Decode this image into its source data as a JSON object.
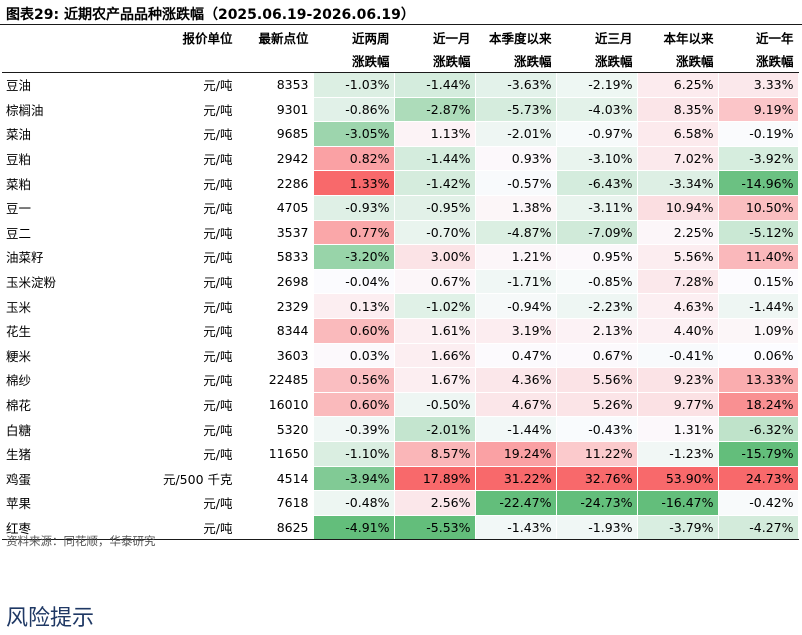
{
  "title": "图表29:  近期农产品品种涨跌幅（2025.06.19-2026.06.19）",
  "header_row1": [
    "",
    "报价单位",
    "最新点位",
    "近两周",
    "近一月",
    "本季度以来",
    "近三月",
    "本年以来",
    "近一年"
  ],
  "header_row2": [
    "",
    "",
    "",
    "涨跌幅",
    "涨跌幅",
    "涨跌幅",
    "涨跌幅",
    "涨跌幅",
    "涨跌幅"
  ],
  "rows": [
    {
      "name": "豆油",
      "unit": "元/吨",
      "price": "8353",
      "vals": [
        "-1.03%",
        "-1.44%",
        "-3.63%",
        "-2.19%",
        "6.25%",
        "3.33%"
      ]
    },
    {
      "name": "棕榈油",
      "unit": "元/吨",
      "price": "9301",
      "vals": [
        "-0.86%",
        "-2.87%",
        "-5.73%",
        "-4.03%",
        "8.35%",
        "9.19%"
      ]
    },
    {
      "name": "菜油",
      "unit": "元/吨",
      "price": "9685",
      "vals": [
        "-3.05%",
        "1.13%",
        "-2.01%",
        "-0.97%",
        "6.58%",
        "-0.19%"
      ]
    },
    {
      "name": "豆粕",
      "unit": "元/吨",
      "price": "2942",
      "vals": [
        "0.82%",
        "-1.44%",
        "0.93%",
        "-3.10%",
        "7.02%",
        "-3.92%"
      ]
    },
    {
      "name": "菜粕",
      "unit": "元/吨",
      "price": "2286",
      "vals": [
        "1.33%",
        "-1.42%",
        "-0.57%",
        "-6.43%",
        "-3.34%",
        "-14.96%"
      ]
    },
    {
      "name": "豆一",
      "unit": "元/吨",
      "price": "4705",
      "vals": [
        "-0.93%",
        "-0.95%",
        "1.38%",
        "-3.11%",
        "10.94%",
        "10.50%"
      ]
    },
    {
      "name": "豆二",
      "unit": "元/吨",
      "price": "3537",
      "vals": [
        "0.77%",
        "-0.70%",
        "-4.87%",
        "-7.09%",
        "2.25%",
        "-5.12%"
      ]
    },
    {
      "name": "油菜籽",
      "unit": "元/吨",
      "price": "5833",
      "vals": [
        "-3.20%",
        "3.00%",
        "1.21%",
        "0.95%",
        "5.56%",
        "11.40%"
      ]
    },
    {
      "name": "玉米淀粉",
      "unit": "元/吨",
      "price": "2698",
      "vals": [
        "-0.04%",
        "0.67%",
        "-1.71%",
        "-0.85%",
        "7.28%",
        "0.15%"
      ]
    },
    {
      "name": "玉米",
      "unit": "元/吨",
      "price": "2329",
      "vals": [
        "0.13%",
        "-1.02%",
        "-0.94%",
        "-2.23%",
        "4.63%",
        "-1.44%"
      ]
    },
    {
      "name": "花生",
      "unit": "元/吨",
      "price": "8344",
      "vals": [
        "0.60%",
        "1.61%",
        "3.19%",
        "2.13%",
        "4.40%",
        "1.09%"
      ]
    },
    {
      "name": "粳米",
      "unit": "元/吨",
      "price": "3603",
      "vals": [
        "0.03%",
        "1.66%",
        "0.47%",
        "0.67%",
        "-0.41%",
        "0.06%"
      ]
    },
    {
      "name": "棉纱",
      "unit": "元/吨",
      "price": "22485",
      "vals": [
        "0.56%",
        "1.67%",
        "4.36%",
        "5.56%",
        "9.23%",
        "13.33%"
      ]
    },
    {
      "name": "棉花",
      "unit": "元/吨",
      "price": "16010",
      "vals": [
        "0.60%",
        "-0.50%",
        "4.67%",
        "5.26%",
        "9.77%",
        "18.24%"
      ]
    },
    {
      "name": "白糖",
      "unit": "元/吨",
      "price": "5320",
      "vals": [
        "-0.39%",
        "-2.01%",
        "-1.44%",
        "-0.43%",
        "1.31%",
        "-6.32%"
      ]
    },
    {
      "name": "生猪",
      "unit": "元/吨",
      "price": "11650",
      "vals": [
        "-1.10%",
        "8.57%",
        "19.24%",
        "11.22%",
        "-1.23%",
        "-15.79%"
      ]
    },
    {
      "name": "鸡蛋",
      "unit": "元/500 千克",
      "price": "4514",
      "vals": [
        "-3.94%",
        "17.89%",
        "31.22%",
        "32.76%",
        "53.90%",
        "24.73%"
      ]
    },
    {
      "name": "苹果",
      "unit": "元/吨",
      "price": "7618",
      "vals": [
        "-0.48%",
        "2.56%",
        "-22.47%",
        "-24.73%",
        "-16.47%",
        "-0.42%"
      ]
    },
    {
      "name": "红枣",
      "unit": "元/吨",
      "price": "8625",
      "vals": [
        "-4.91%",
        "-5.53%",
        "-1.43%",
        "-1.93%",
        "-3.79%",
        "-4.27%"
      ]
    }
  ],
  "colors": {
    "positive": "#f8696b",
    "negative": "#63be7b",
    "neutral": "#fcfcff"
  },
  "source": "资料来源：同花顺，华泰研究",
  "section_title": "风险提示"
}
